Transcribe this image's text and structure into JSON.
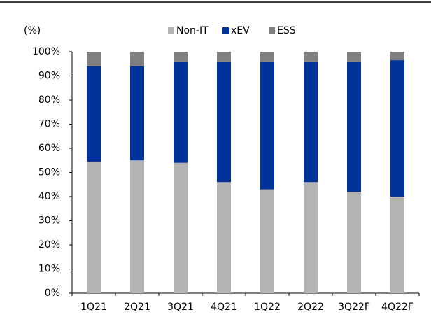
{
  "chart_data": {
    "type": "stacked_bar",
    "y_label": "(%)",
    "categories": [
      "1Q21",
      "2Q21",
      "3Q21",
      "4Q21",
      "1Q22",
      "2Q22",
      "3Q22F",
      "4Q22F"
    ],
    "series": [
      {
        "name": "Non-IT",
        "color": "#b3b3b3",
        "values": [
          54.5,
          55,
          54,
          46,
          43,
          46,
          42,
          40
        ]
      },
      {
        "name": "xEV",
        "color": "#003399",
        "values": [
          39.5,
          39,
          42,
          50,
          53,
          50,
          54,
          56.5
        ]
      },
      {
        "name": "ESS",
        "color": "#808080",
        "values": [
          6,
          6,
          4,
          4,
          4,
          4,
          4,
          3.5
        ]
      }
    ],
    "ylim": [
      0,
      100
    ],
    "yticks": [
      {
        "value": 0,
        "label": "0%"
      },
      {
        "value": 10,
        "label": "10%"
      },
      {
        "value": 20,
        "label": "20%"
      },
      {
        "value": 30,
        "label": "30%"
      },
      {
        "value": 40,
        "label": "40%"
      },
      {
        "value": 50,
        "label": "50%"
      },
      {
        "value": 60,
        "label": "60%"
      },
      {
        "value": 70,
        "label": "70%"
      },
      {
        "value": 80,
        "label": "80%"
      },
      {
        "value": 90,
        "label": "90%"
      },
      {
        "value": 100,
        "label": "100%"
      }
    ],
    "legend": "top"
  }
}
